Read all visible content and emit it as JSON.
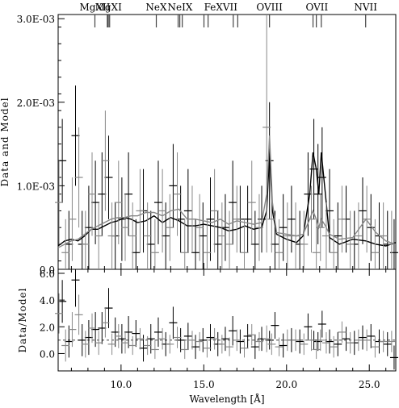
{
  "chart_data": [
    {
      "type": "line",
      "ylabel": "Data and Model",
      "xlim": [
        6.2,
        26.6
      ],
      "ylim": [
        0,
        0.00305
      ],
      "y_ticks": [
        0,
        0.001,
        0.002,
        0.003
      ],
      "y_tick_labels": [
        "0.0",
        "1.0E-03",
        "2.0E-03",
        "3.0E-03"
      ],
      "grid": false,
      "line_annotations": [
        {
          "label": "MgXII",
          "ticks": [
            8.42
          ]
        },
        {
          "label": "MgXI",
          "ticks": [
            9.17,
            9.23,
            9.31
          ]
        },
        {
          "label": "NeX",
          "ticks": [
            12.13
          ]
        },
        {
          "label": "NeIX",
          "ticks": [
            13.45,
            13.55,
            13.7
          ]
        },
        {
          "label": "FeXVII",
          "ticks": [
            15.01,
            15.26,
            16.78,
            17.05
          ]
        },
        {
          "label": "OVIII",
          "ticks": [
            18.97
          ]
        },
        {
          "label": "OVII",
          "ticks": [
            21.6,
            21.8,
            22.1
          ]
        },
        {
          "label": "NVII",
          "ticks": [
            24.78
          ]
        }
      ],
      "series": [
        {
          "color": "#000000",
          "style": "data+model",
          "model_x": [
            6.2,
            6.6,
            7.0,
            7.4,
            7.8,
            8.2,
            8.6,
            9.0,
            9.4,
            9.8,
            10.2,
            10.6,
            11.0,
            11.5,
            12.0,
            12.5,
            13.0,
            13.5,
            14.0,
            14.5,
            15.0,
            15.5,
            16.0,
            16.5,
            17.0,
            17.5,
            18.0,
            18.5,
            18.8,
            18.97,
            19.15,
            19.4,
            20.0,
            20.6,
            21.0,
            21.4,
            21.6,
            21.8,
            21.95,
            22.1,
            22.35,
            22.6,
            23.2,
            24.0,
            24.8,
            25.4,
            26.0,
            26.6
          ],
          "model_y": [
            0.00028,
            0.00034,
            0.00036,
            0.00034,
            0.0004,
            0.00048,
            0.00048,
            0.00052,
            0.00056,
            0.00058,
            0.00062,
            0.0006,
            0.00056,
            0.00058,
            0.00064,
            0.00056,
            0.00062,
            0.00058,
            0.00052,
            0.00052,
            0.00054,
            0.00052,
            0.0005,
            0.00046,
            0.00048,
            0.00052,
            0.00048,
            0.0005,
            0.0007,
            0.0014,
            0.0007,
            0.00042,
            0.00036,
            0.00032,
            0.0004,
            0.0009,
            0.0014,
            0.0012,
            0.0009,
            0.0014,
            0.0009,
            0.00038,
            0.0003,
            0.00036,
            0.00034,
            0.0003,
            0.00028,
            0.00032
          ],
          "data_x": [
            6.45,
            6.85,
            7.25,
            7.65,
            8.05,
            8.45,
            8.85,
            9.25,
            9.65,
            10.05,
            10.45,
            10.9,
            11.35,
            11.8,
            12.25,
            12.7,
            13.15,
            13.6,
            14.05,
            14.5,
            14.95,
            15.4,
            15.85,
            16.3,
            16.75,
            17.2,
            17.65,
            18.1,
            18.5,
            18.97,
            19.3,
            19.8,
            20.3,
            20.8,
            21.3,
            21.65,
            21.9,
            22.15,
            22.6,
            23.1,
            23.6,
            24.1,
            24.6,
            25.1,
            25.6,
            26.1,
            26.5
          ],
          "data_y": [
            0.0013,
            0.0003,
            0.0016,
            0.0003,
            0.0005,
            0.0008,
            0.0009,
            0.0011,
            0.0004,
            0.0006,
            0.0009,
            0.0002,
            0.0007,
            0.0003,
            0.0008,
            0.0004,
            0.001,
            0.0006,
            0.0007,
            0.0002,
            0.0004,
            0.0006,
            0.0003,
            0.0005,
            0.0008,
            0.0006,
            0.0006,
            0.0003,
            0.0006,
            0.0013,
            0.0003,
            0.0005,
            0.0006,
            0.0003,
            0.0009,
            0.0012,
            0.0009,
            0.0011,
            0.0007,
            0.0004,
            0.0006,
            0.0003,
            0.0007,
            0.0005,
            0.0004,
            0.0003,
            0.0002
          ],
          "data_err": [
            0.0005,
            0.0004,
            0.0006,
            0.0004,
            0.0005,
            0.0005,
            0.0005,
            0.0005,
            0.0004,
            0.0005,
            0.0005,
            0.0004,
            0.0005,
            0.0004,
            0.0005,
            0.0004,
            0.0005,
            0.0004,
            0.0005,
            0.0004,
            0.0004,
            0.0005,
            0.0004,
            0.0004,
            0.0005,
            0.0004,
            0.0004,
            0.0004,
            0.0004,
            0.0007,
            0.0004,
            0.0004,
            0.0004,
            0.0004,
            0.0005,
            0.0006,
            0.0006,
            0.0006,
            0.0005,
            0.0004,
            0.0004,
            0.0004,
            0.0004,
            0.0004,
            0.0004,
            0.0004,
            0.0004
          ]
        },
        {
          "color": "#888888",
          "style": "data+model",
          "model_x": [
            6.2,
            6.6,
            7.0,
            7.4,
            7.8,
            8.2,
            8.6,
            9.0,
            9.4,
            9.8,
            10.2,
            10.6,
            11.0,
            11.5,
            12.0,
            12.5,
            13.0,
            13.5,
            14.0,
            14.5,
            15.0,
            15.5,
            16.0,
            16.5,
            17.0,
            17.5,
            18.0,
            18.5,
            18.8,
            18.97,
            19.15,
            19.4,
            20.0,
            20.6,
            21.0,
            21.4,
            21.6,
            21.8,
            21.95,
            22.1,
            22.35,
            22.6,
            23.2,
            24.0,
            24.8,
            25.4,
            26.0,
            26.6
          ],
          "model_y": [
            0.00026,
            0.0003,
            0.00034,
            0.00036,
            0.00042,
            0.00048,
            0.00052,
            0.00056,
            0.0006,
            0.00062,
            0.00062,
            0.00064,
            0.00064,
            0.00068,
            0.00068,
            0.00064,
            0.0007,
            0.00072,
            0.0006,
            0.0006,
            0.00058,
            0.00056,
            0.0006,
            0.00054,
            0.00058,
            0.00056,
            0.00054,
            0.00056,
            0.0009,
            0.0016,
            0.0008,
            0.00044,
            0.00042,
            0.0004,
            0.00042,
            0.0006,
            0.0007,
            0.0006,
            0.0005,
            0.0006,
            0.00052,
            0.00042,
            0.00036,
            0.00038,
            0.0006,
            0.00044,
            0.00034,
            0.0003
          ],
          "data_x": [
            6.25,
            6.65,
            7.05,
            7.45,
            7.85,
            8.25,
            8.65,
            9.05,
            9.45,
            9.85,
            10.25,
            10.7,
            11.15,
            11.6,
            12.05,
            12.5,
            12.95,
            13.4,
            13.85,
            14.3,
            14.75,
            15.2,
            15.65,
            16.1,
            16.55,
            17.0,
            17.45,
            17.9,
            18.35,
            18.8,
            19.1,
            19.55,
            20.05,
            20.55,
            21.05,
            21.5,
            21.8,
            22.05,
            22.4,
            22.85,
            23.35,
            23.85,
            24.35,
            24.85,
            25.35,
            25.85,
            26.35
          ],
          "data_y": [
            0.0008,
            0.0002,
            0.0006,
            0.0011,
            0.0003,
            0.0009,
            0.0004,
            0.0013,
            0.0004,
            0.0008,
            0.0005,
            0.0004,
            0.0007,
            0.0004,
            0.0002,
            0.0007,
            0.0005,
            0.0009,
            0.0002,
            0.0006,
            0.0005,
            0.0002,
            0.0007,
            0.0004,
            0.0003,
            0.0006,
            0.0002,
            0.0008,
            0.0005,
            0.0017,
            0.0006,
            0.0002,
            0.0004,
            0.0004,
            0.0003,
            0.0006,
            0.0002,
            0.0005,
            0.0004,
            0.0002,
            0.0006,
            0.0003,
            0.0004,
            0.0006,
            0.0002,
            0.0004,
            0.0003
          ],
          "data_err": [
            0.0005,
            0.0004,
            0.0005,
            0.0006,
            0.0004,
            0.0005,
            0.0004,
            0.0006,
            0.0004,
            0.0005,
            0.0004,
            0.0004,
            0.0005,
            0.0004,
            0.0004,
            0.0005,
            0.0004,
            0.0005,
            0.0004,
            0.0004,
            0.0004,
            0.0004,
            0.0005,
            0.0004,
            0.0004,
            0.0004,
            0.0004,
            0.0005,
            0.0004,
            0.0015,
            0.0004,
            0.0004,
            0.0004,
            0.0004,
            0.0004,
            0.0004,
            0.0004,
            0.0004,
            0.0004,
            0.0004,
            0.0004,
            0.0004,
            0.0004,
            0.0004,
            0.0004,
            0.0004,
            0.0004
          ]
        }
      ]
    },
    {
      "type": "scatter",
      "ylabel": "Data/Model",
      "xlabel": "Wavelength [Å]",
      "xlim": [
        6.2,
        26.6
      ],
      "ylim": [
        -1.3,
        6.3
      ],
      "x_ticks": [
        10,
        15,
        20,
        25
      ],
      "x_tick_labels": [
        "10.0",
        "15.0",
        "20.0",
        "25.0"
      ],
      "y_ticks": [
        0,
        2,
        4,
        6
      ],
      "y_tick_labels": [
        "0.0",
        "2.0",
        "4.0",
        "6.0"
      ],
      "reference_line": 1.0,
      "grid": false,
      "series": [
        {
          "color": "#000000",
          "x": [
            6.45,
            6.85,
            7.25,
            7.65,
            8.05,
            8.45,
            8.85,
            9.25,
            9.65,
            10.05,
            10.45,
            10.9,
            11.35,
            11.8,
            12.25,
            12.7,
            13.15,
            13.6,
            14.05,
            14.5,
            14.95,
            15.4,
            15.85,
            16.3,
            16.75,
            17.2,
            17.65,
            18.1,
            18.5,
            18.97,
            19.3,
            19.8,
            20.3,
            20.8,
            21.3,
            21.65,
            21.9,
            22.15,
            22.6,
            23.1,
            23.6,
            24.1,
            24.6,
            25.1,
            25.6,
            26.1,
            26.5
          ],
          "y": [
            3.9,
            0.9,
            5.5,
            1.0,
            1.2,
            1.8,
            1.9,
            3.4,
            1.6,
            1.1,
            1.6,
            1.5,
            0.4,
            1.1,
            1.6,
            0.7,
            2.3,
            1.0,
            1.3,
            0.5,
            1.0,
            1.2,
            0.7,
            1.1,
            1.7,
            0.9,
            1.3,
            0.5,
            1.1,
            1.0,
            2.1,
            0.6,
            1.0,
            0.9,
            2.0,
            1.0,
            0.9,
            2.2,
            0.9,
            0.7,
            1.1,
            0.8,
            1.2,
            1.3,
            0.9,
            0.7,
            -0.3
          ],
          "err": [
            1.6,
            1.2,
            2.0,
            1.2,
            1.3,
            1.3,
            1.2,
            1.5,
            1.1,
            1.1,
            1.2,
            1.0,
            1.0,
            1.1,
            1.1,
            0.9,
            1.2,
            0.9,
            1.0,
            0.9,
            0.9,
            1.0,
            0.9,
            0.9,
            1.1,
            0.9,
            0.9,
            0.9,
            0.9,
            0.7,
            1.0,
            0.9,
            0.9,
            0.9,
            1.0,
            0.7,
            0.7,
            1.0,
            0.9,
            0.9,
            0.9,
            0.9,
            0.9,
            0.9,
            0.9,
            0.9,
            0.9
          ]
        },
        {
          "color": "#888888",
          "x": [
            6.25,
            6.65,
            7.05,
            7.45,
            7.85,
            8.25,
            8.65,
            9.05,
            9.45,
            9.85,
            10.25,
            10.7,
            11.15,
            11.6,
            12.05,
            12.5,
            12.95,
            13.4,
            13.85,
            14.3,
            14.75,
            15.2,
            15.65,
            16.1,
            16.55,
            17.0,
            17.45,
            17.9,
            18.35,
            18.8,
            19.1,
            19.55,
            20.05,
            20.55,
            21.05,
            21.5,
            21.8,
            22.05,
            22.4,
            22.85,
            23.35,
            23.85,
            24.35,
            24.85,
            25.35,
            25.85,
            26.35
          ],
          "y": [
            3.0,
            0.6,
            1.8,
            2.9,
            0.7,
            1.9,
            0.8,
            2.3,
            0.7,
            1.3,
            0.8,
            0.6,
            1.1,
            0.6,
            0.3,
            1.1,
            0.7,
            1.2,
            0.3,
            1.0,
            0.9,
            0.4,
            1.1,
            0.7,
            0.5,
            1.0,
            0.4,
            1.4,
            0.9,
            1.1,
            0.7,
            0.5,
            1.0,
            1.0,
            0.7,
            1.0,
            0.3,
            1.0,
            0.8,
            0.5,
            1.6,
            0.8,
            1.0,
            1.0,
            0.5,
            0.9,
            0.9
          ],
          "err": [
            1.5,
            1.2,
            1.3,
            1.5,
            1.0,
            1.1,
            0.9,
            1.1,
            0.8,
            0.9,
            0.8,
            0.7,
            0.8,
            0.7,
            0.7,
            0.8,
            0.7,
            0.8,
            0.7,
            0.7,
            0.7,
            0.7,
            0.8,
            0.7,
            0.7,
            0.8,
            0.7,
            0.8,
            0.7,
            1.0,
            0.8,
            0.7,
            0.8,
            0.8,
            0.8,
            0.8,
            0.7,
            0.8,
            0.8,
            0.8,
            0.8,
            0.8,
            0.8,
            0.8,
            0.8,
            0.8,
            0.8
          ]
        }
      ]
    }
  ]
}
